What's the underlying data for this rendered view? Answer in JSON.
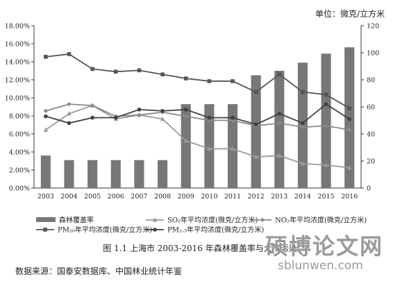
{
  "unit_label": "单位：微克/立方米",
  "caption": "图 1.1    上海市 2003-2016 年森林覆盖率与大气污染",
  "source": "数据来源：国泰安数据库、中国林业统计年鉴",
  "watermark": {
    "main": "硕博论文网",
    "url": "sblunwen.com"
  },
  "chart_data": {
    "type": "bar",
    "categories": [
      "2003",
      "2004",
      "2005",
      "2006",
      "2007",
      "2008",
      "2009",
      "2010",
      "2011",
      "2012",
      "2013",
      "2014",
      "2015",
      "2016"
    ],
    "left_axis": {
      "min": 0,
      "max": 18,
      "step": 2,
      "ticks": [
        "0.00%",
        "2.00%",
        "4.00%",
        "6.00%",
        "8.00%",
        "10.00%",
        "12.00%",
        "14.00%",
        "16.00%",
        "18.00%"
      ]
    },
    "right_axis": {
      "min": 0,
      "max": 120,
      "step": 20,
      "ticks": [
        "0",
        "20",
        "40",
        "60",
        "80",
        "100",
        "120"
      ]
    },
    "bar_series": {
      "name": "森林覆盖率",
      "color": "#777777",
      "values": [
        3.6,
        3.1,
        3.1,
        3.1,
        3.1,
        3.1,
        9.3,
        9.3,
        9.3,
        12.5,
        13.0,
        13.9,
        14.9,
        15.6
      ]
    },
    "line_series": [
      {
        "name": "SO₂年平均浓度(微克/立方米)",
        "marker": "triangle",
        "color": "#9a9a9a",
        "values": [
          43,
          55,
          61,
          51,
          54,
          51,
          35,
          29,
          29,
          23,
          24,
          18,
          17,
          15
        ]
      },
      {
        "name": "NO₂年平均浓度(微克/立方米)",
        "marker": "diamond",
        "color": "#8a8a8a",
        "values": [
          57,
          62,
          61,
          53,
          54,
          56,
          53,
          50,
          50,
          46,
          48,
          45,
          46,
          43
        ]
      },
      {
        "name": "PM₁₀年平均浓度(微克/立方米)",
        "marker": "square",
        "color": "#555555",
        "values": [
          97,
          99,
          88,
          86,
          87,
          84,
          81,
          79,
          79,
          71,
          84,
          71,
          69,
          59
        ]
      },
      {
        "name": "PM₂.₅年平均浓度(微克/立方米)",
        "marker": "circle",
        "color": "#404040",
        "values": [
          53,
          48,
          52,
          52,
          58,
          57,
          58,
          52,
          52,
          47,
          55,
          48,
          62,
          51
        ]
      }
    ]
  }
}
